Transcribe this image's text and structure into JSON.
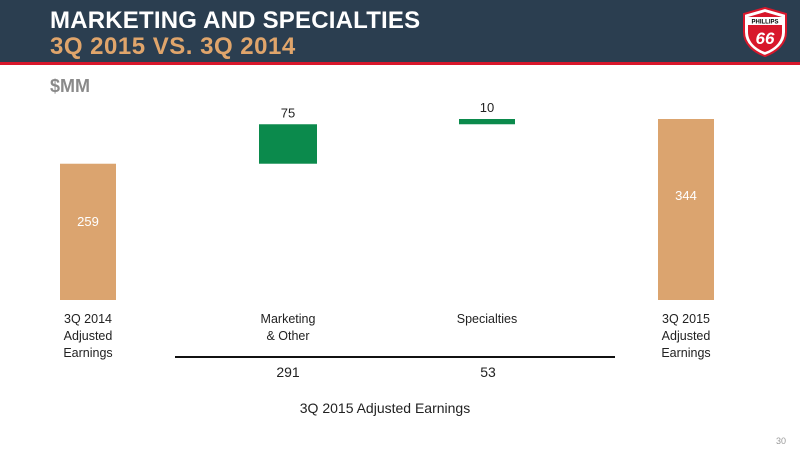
{
  "header": {
    "title": "MARKETING AND SPECIALTIES",
    "subtitle": "3Q 2015 VS. 3Q 2014",
    "units": "$MM",
    "logo_text_top": "PHILLIPS",
    "logo_text_number": "66"
  },
  "colors": {
    "header_bg": "#2b3e50",
    "accent_red": "#d8172b",
    "total_bar": "#dba46f",
    "increase_bar": "#0b8a4c"
  },
  "chart_data": {
    "type": "bar",
    "subtype": "waterfall",
    "categories": [
      "3Q 2014\nAdjusted\nEarnings",
      "Marketing\n& Other",
      "Specialties",
      "3Q 2015\nAdjusted\nEarnings"
    ],
    "values": [
      259,
      75,
      10,
      344
    ],
    "kinds": [
      "total",
      "delta",
      "delta",
      "total"
    ],
    "data_labels": [
      "259",
      "75",
      "10",
      "344"
    ],
    "breakdown": {
      "caption": "3Q 2015 Adjusted Earnings",
      "values": [
        "291",
        "53"
      ]
    },
    "title": "MARKETING AND SPECIALTIES",
    "ylabel": "$MM"
  },
  "footer": {
    "page_number": "30"
  }
}
